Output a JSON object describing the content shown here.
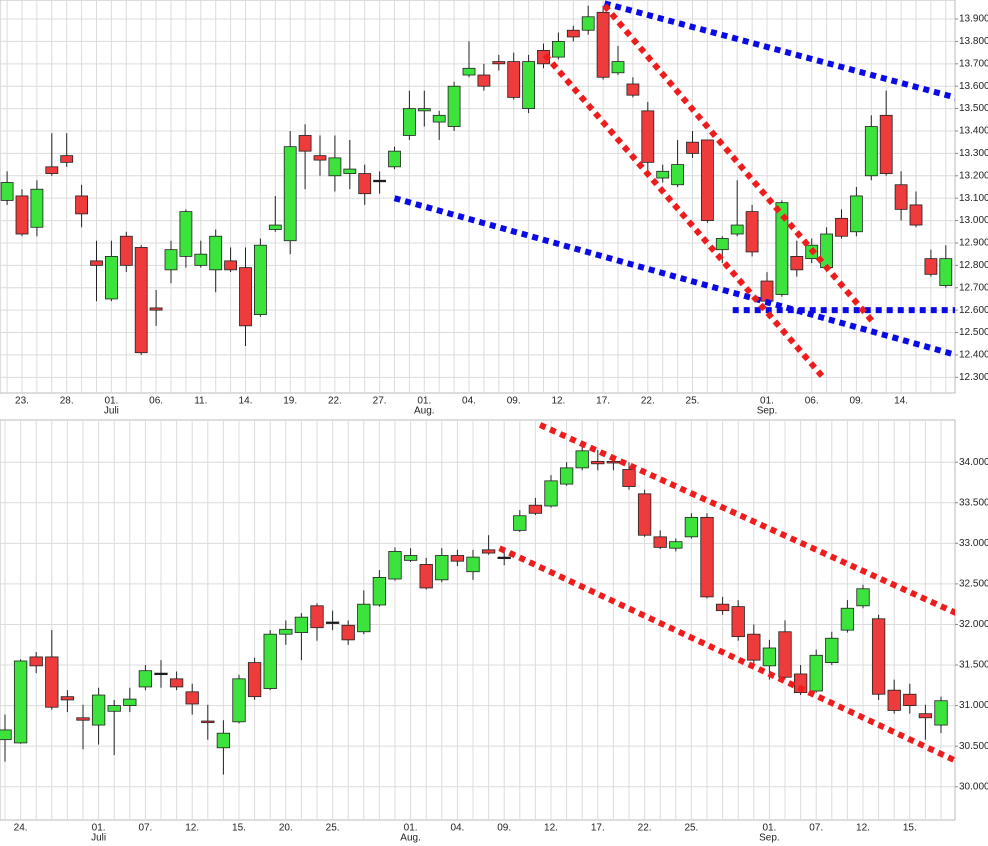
{
  "chart_data": [
    {
      "type": "candlestick",
      "up_color": "#3de33d",
      "down_color": "#ee3b3b",
      "doji_color": "#111111",
      "grid": true,
      "categories": [
        null,
        "23.",
        null,
        null,
        "28.",
        null,
        null,
        "01.",
        null,
        null,
        "06.",
        null,
        null,
        "11.",
        null,
        null,
        "14.",
        null,
        null,
        "19.",
        null,
        null,
        "22.",
        null,
        null,
        "27.",
        null,
        null,
        "01.",
        null,
        null,
        "04.",
        null,
        null,
        "09.",
        null,
        null,
        "12.",
        null,
        null,
        "17.",
        null,
        null,
        "22.",
        null,
        null,
        "25.",
        null,
        null,
        null,
        null,
        "01.",
        null,
        null,
        "06.",
        null,
        null,
        "09.",
        null,
        null,
        "14.",
        null,
        null,
        null
      ],
      "months": [
        null,
        null,
        null,
        null,
        null,
        null,
        null,
        "Juli",
        null,
        null,
        null,
        null,
        null,
        null,
        null,
        null,
        null,
        null,
        null,
        null,
        null,
        null,
        null,
        null,
        null,
        null,
        null,
        null,
        "Aug.",
        null,
        null,
        null,
        null,
        null,
        null,
        null,
        null,
        null,
        null,
        null,
        null,
        null,
        null,
        null,
        null,
        null,
        null,
        null,
        null,
        null,
        null,
        "Sep.",
        null,
        null,
        null,
        null,
        null,
        null,
        null,
        null,
        null,
        null,
        null,
        null
      ],
      "open": [
        13.09,
        13.11,
        12.97,
        13.24,
        13.29,
        13.11,
        12.82,
        12.65,
        12.93,
        12.88,
        12.61,
        12.78,
        12.84,
        12.8,
        12.78,
        12.82,
        12.79,
        12.58,
        12.96,
        12.91,
        13.38,
        13.29,
        13.2,
        13.21,
        13.21,
        13.18,
        13.24,
        13.38,
        13.49,
        13.44,
        13.42,
        13.65,
        13.65,
        13.71,
        13.71,
        13.5,
        13.76,
        13.73,
        13.85,
        13.85,
        13.93,
        13.66,
        13.61,
        13.49,
        13.19,
        13.16,
        13.35,
        13.36,
        12.87,
        12.94,
        13.04,
        12.73,
        12.67,
        12.84,
        12.83,
        12.79,
        13.01,
        12.95,
        13.2,
        13.47,
        13.16,
        13.07,
        12.83,
        12.71
      ],
      "high": [
        13.22,
        13.14,
        13.18,
        13.39,
        13.39,
        13.16,
        12.91,
        12.91,
        12.95,
        12.89,
        12.69,
        12.91,
        13.05,
        12.91,
        12.96,
        12.88,
        12.88,
        12.92,
        13.11,
        13.4,
        13.43,
        13.38,
        13.38,
        13.36,
        13.25,
        13.22,
        13.33,
        13.58,
        13.58,
        13.49,
        13.62,
        13.8,
        13.7,
        13.74,
        13.75,
        13.74,
        13.79,
        13.84,
        13.87,
        13.96,
        13.96,
        13.78,
        13.64,
        13.53,
        13.25,
        13.36,
        13.4,
        13.36,
        12.93,
        13.18,
        13.07,
        12.77,
        13.09,
        12.91,
        12.92,
        12.97,
        13.05,
        13.15,
        13.47,
        13.58,
        13.22,
        13.13,
        12.87,
        12.89
      ],
      "low": [
        13.07,
        12.93,
        12.93,
        13.2,
        13.24,
        12.97,
        12.64,
        12.64,
        12.77,
        12.4,
        12.53,
        12.72,
        12.79,
        12.79,
        12.68,
        12.77,
        12.44,
        12.57,
        12.95,
        12.85,
        13.14,
        13.2,
        13.13,
        13.14,
        13.07,
        13.12,
        13.23,
        13.36,
        13.42,
        13.36,
        13.4,
        13.64,
        13.58,
        13.67,
        13.54,
        13.48,
        13.68,
        13.72,
        13.8,
        13.83,
        13.63,
        13.65,
        13.55,
        13.22,
        13.17,
        13.15,
        13.28,
        12.99,
        12.81,
        12.93,
        12.84,
        12.62,
        12.66,
        12.75,
        12.81,
        12.77,
        12.92,
        12.93,
        13.18,
        13.2,
        13.0,
        12.97,
        12.75,
        12.7
      ],
      "close": [
        13.17,
        12.94,
        13.14,
        13.21,
        13.26,
        13.03,
        12.8,
        12.84,
        12.8,
        12.41,
        12.6,
        12.87,
        13.04,
        12.85,
        12.93,
        12.78,
        12.53,
        12.89,
        12.98,
        13.33,
        13.31,
        13.27,
        13.28,
        13.23,
        13.12,
        13.18,
        13.31,
        13.5,
        13.5,
        13.47,
        13.6,
        13.68,
        13.6,
        13.7,
        13.55,
        13.71,
        13.7,
        13.8,
        13.82,
        13.91,
        13.64,
        13.71,
        13.56,
        13.26,
        13.22,
        13.25,
        13.3,
        13.0,
        12.92,
        12.98,
        12.86,
        12.64,
        13.08,
        12.78,
        12.89,
        12.94,
        12.93,
        13.11,
        13.42,
        13.21,
        13.05,
        12.98,
        12.76,
        12.83
      ],
      "ylim": [
        12.23,
        13.985
      ],
      "yticks": [
        {
          "value": 12.3,
          "label": "12.300"
        },
        {
          "value": 12.4,
          "label": "12.400"
        },
        {
          "value": 12.5,
          "label": "12.500"
        },
        {
          "value": 12.6,
          "label": "12.600"
        },
        {
          "value": 12.7,
          "label": "12.700"
        },
        {
          "value": 12.8,
          "label": "12.800"
        },
        {
          "value": 12.9,
          "label": "12.900"
        },
        {
          "value": 13.0,
          "label": "13.000"
        },
        {
          "value": 13.1,
          "label": "13.100"
        },
        {
          "value": 13.2,
          "label": "13.200"
        },
        {
          "value": 13.3,
          "label": "13.300"
        },
        {
          "value": 13.4,
          "label": "13.400"
        },
        {
          "value": 13.5,
          "label": "13.500"
        },
        {
          "value": 13.6,
          "label": "13.600"
        },
        {
          "value": 13.7,
          "label": "13.700"
        },
        {
          "value": 13.8,
          "label": "13.800"
        },
        {
          "value": 13.9,
          "label": "13.900"
        }
      ],
      "trendlines": [
        {
          "color": "#0a0ae6",
          "x": [
            40.1,
            65.3
          ],
          "y": [
            13.97,
            13.52
          ]
        },
        {
          "color": "#0a0ae6",
          "x": [
            26.0,
            65.3
          ],
          "y": [
            13.1,
            12.37
          ]
        },
        {
          "color": "#0a0ae6",
          "x": [
            48.7,
            65.3
          ],
          "y": [
            12.6,
            12.6
          ]
        },
        {
          "color": "#ee1c1c",
          "x": [
            36.1,
            54.9
          ],
          "y": [
            13.74,
            12.29
          ]
        },
        {
          "color": "#ee1c1c",
          "x": [
            40.1,
            58.2
          ],
          "y": [
            13.96,
            12.54
          ]
        }
      ]
    },
    {
      "type": "candlestick",
      "up_color": "#3de33d",
      "down_color": "#ee3b3b",
      "doji_color": "#111111",
      "grid": true,
      "categories": [
        null,
        "24.",
        null,
        null,
        null,
        null,
        "01.",
        null,
        null,
        "07.",
        null,
        null,
        "12.",
        null,
        null,
        "15.",
        null,
        null,
        "20.",
        null,
        null,
        "25.",
        null,
        null,
        null,
        null,
        "01.",
        null,
        null,
        "04.",
        null,
        null,
        "09.",
        null,
        null,
        "12.",
        null,
        null,
        "17.",
        null,
        null,
        "22.",
        null,
        null,
        "25.",
        null,
        null,
        null,
        null,
        "01.",
        null,
        null,
        "07.",
        null,
        null,
        "12.",
        null,
        null,
        "15.",
        null,
        null
      ],
      "months": [
        null,
        null,
        null,
        null,
        null,
        null,
        "Juli",
        null,
        null,
        null,
        null,
        null,
        null,
        null,
        null,
        null,
        null,
        null,
        null,
        null,
        null,
        null,
        null,
        null,
        null,
        null,
        "Aug.",
        null,
        null,
        null,
        null,
        null,
        null,
        null,
        null,
        null,
        null,
        null,
        null,
        null,
        null,
        null,
        null,
        null,
        null,
        null,
        null,
        null,
        null,
        "Sep.",
        null,
        null,
        null,
        null,
        null,
        null,
        null,
        null,
        null,
        null,
        null
      ],
      "open": [
        30.58,
        30.54,
        31.6,
        31.6,
        31.11,
        30.85,
        30.76,
        30.93,
        31.0,
        31.23,
        31.4,
        31.33,
        31.17,
        30.81,
        30.48,
        30.8,
        31.53,
        31.21,
        31.88,
        31.9,
        32.23,
        32.03,
        31.99,
        31.91,
        32.24,
        32.56,
        32.79,
        32.74,
        32.55,
        32.85,
        32.65,
        32.92,
        32.83,
        33.16,
        33.47,
        33.46,
        33.73,
        33.93,
        34.01,
        34.01,
        33.91,
        33.61,
        33.08,
        32.94,
        33.08,
        33.32,
        32.25,
        32.22,
        31.88,
        31.49,
        31.91,
        31.39,
        31.18,
        31.53,
        31.93,
        32.23,
        32.07,
        31.19,
        31.14,
        30.9,
        30.76
      ],
      "high": [
        30.89,
        31.57,
        31.66,
        31.93,
        31.19,
        31.01,
        31.22,
        31.07,
        31.22,
        31.5,
        31.56,
        31.42,
        31.27,
        31.01,
        30.82,
        31.38,
        31.59,
        31.93,
        32.05,
        32.14,
        32.26,
        32.17,
        32.05,
        32.42,
        32.67,
        32.95,
        32.94,
        32.82,
        32.94,
        32.92,
        32.92,
        33.1,
        32.95,
        33.41,
        33.56,
        33.84,
        34.0,
        34.22,
        34.15,
        34.09,
        34.0,
        33.66,
        33.16,
        33.06,
        33.37,
        33.37,
        32.34,
        32.3,
        32.0,
        31.81,
        32.05,
        31.5,
        31.69,
        31.91,
        32.3,
        32.49,
        32.12,
        31.32,
        31.27,
        31.01,
        31.11
      ],
      "low": [
        30.31,
        30.53,
        31.4,
        30.95,
        30.92,
        30.46,
        30.52,
        30.39,
        30.92,
        31.19,
        31.22,
        31.19,
        30.89,
        30.58,
        30.15,
        30.78,
        31.07,
        31.19,
        31.75,
        31.56,
        31.8,
        31.93,
        31.75,
        31.88,
        32.22,
        32.54,
        32.77,
        32.43,
        32.52,
        32.72,
        32.55,
        32.86,
        32.73,
        33.14,
        33.35,
        33.44,
        33.71,
        33.9,
        33.9,
        33.9,
        33.66,
        33.08,
        32.93,
        32.9,
        33.06,
        32.32,
        32.12,
        31.8,
        31.52,
        31.32,
        31.33,
        31.13,
        31.16,
        31.5,
        31.9,
        32.2,
        31.07,
        30.9,
        30.9,
        30.58,
        30.66
      ],
      "close": [
        30.7,
        31.55,
        31.49,
        30.98,
        31.07,
        30.82,
        31.13,
        31.0,
        31.08,
        31.43,
        31.4,
        31.23,
        31.02,
        30.79,
        30.66,
        31.33,
        31.11,
        31.88,
        31.94,
        32.09,
        31.96,
        32.03,
        31.81,
        32.25,
        32.58,
        32.9,
        32.85,
        32.45,
        32.85,
        32.78,
        32.83,
        32.88,
        32.83,
        33.34,
        33.37,
        33.77,
        33.93,
        34.14,
        33.98,
        33.99,
        33.7,
        33.1,
        32.95,
        33.02,
        33.32,
        32.34,
        32.17,
        31.85,
        31.56,
        31.71,
        31.35,
        31.16,
        31.62,
        31.83,
        32.2,
        32.44,
        31.14,
        30.94,
        31.0,
        30.85,
        31.06
      ],
      "ylim": [
        29.59,
        34.52
      ],
      "yticks": [
        {
          "value": 30.0,
          "label": "30.000"
        },
        {
          "value": 30.5,
          "label": "30.500"
        },
        {
          "value": 31.0,
          "label": "31.000"
        },
        {
          "value": 31.5,
          "label": "31.500"
        },
        {
          "value": 32.0,
          "label": "32.000"
        },
        {
          "value": 32.5,
          "label": "32.500"
        },
        {
          "value": 33.0,
          "label": "33.000"
        },
        {
          "value": 33.5,
          "label": "33.500"
        },
        {
          "value": 34.0,
          "label": "34.000"
        }
      ],
      "trendlines": [
        {
          "color": "#ee1c1c",
          "x": [
            34.3,
            61.9
          ],
          "y": [
            34.46,
            32.06
          ]
        },
        {
          "color": "#ee1c1c",
          "x": [
            31.7,
            61.5
          ],
          "y": [
            32.94,
            30.27
          ]
        }
      ]
    }
  ]
}
